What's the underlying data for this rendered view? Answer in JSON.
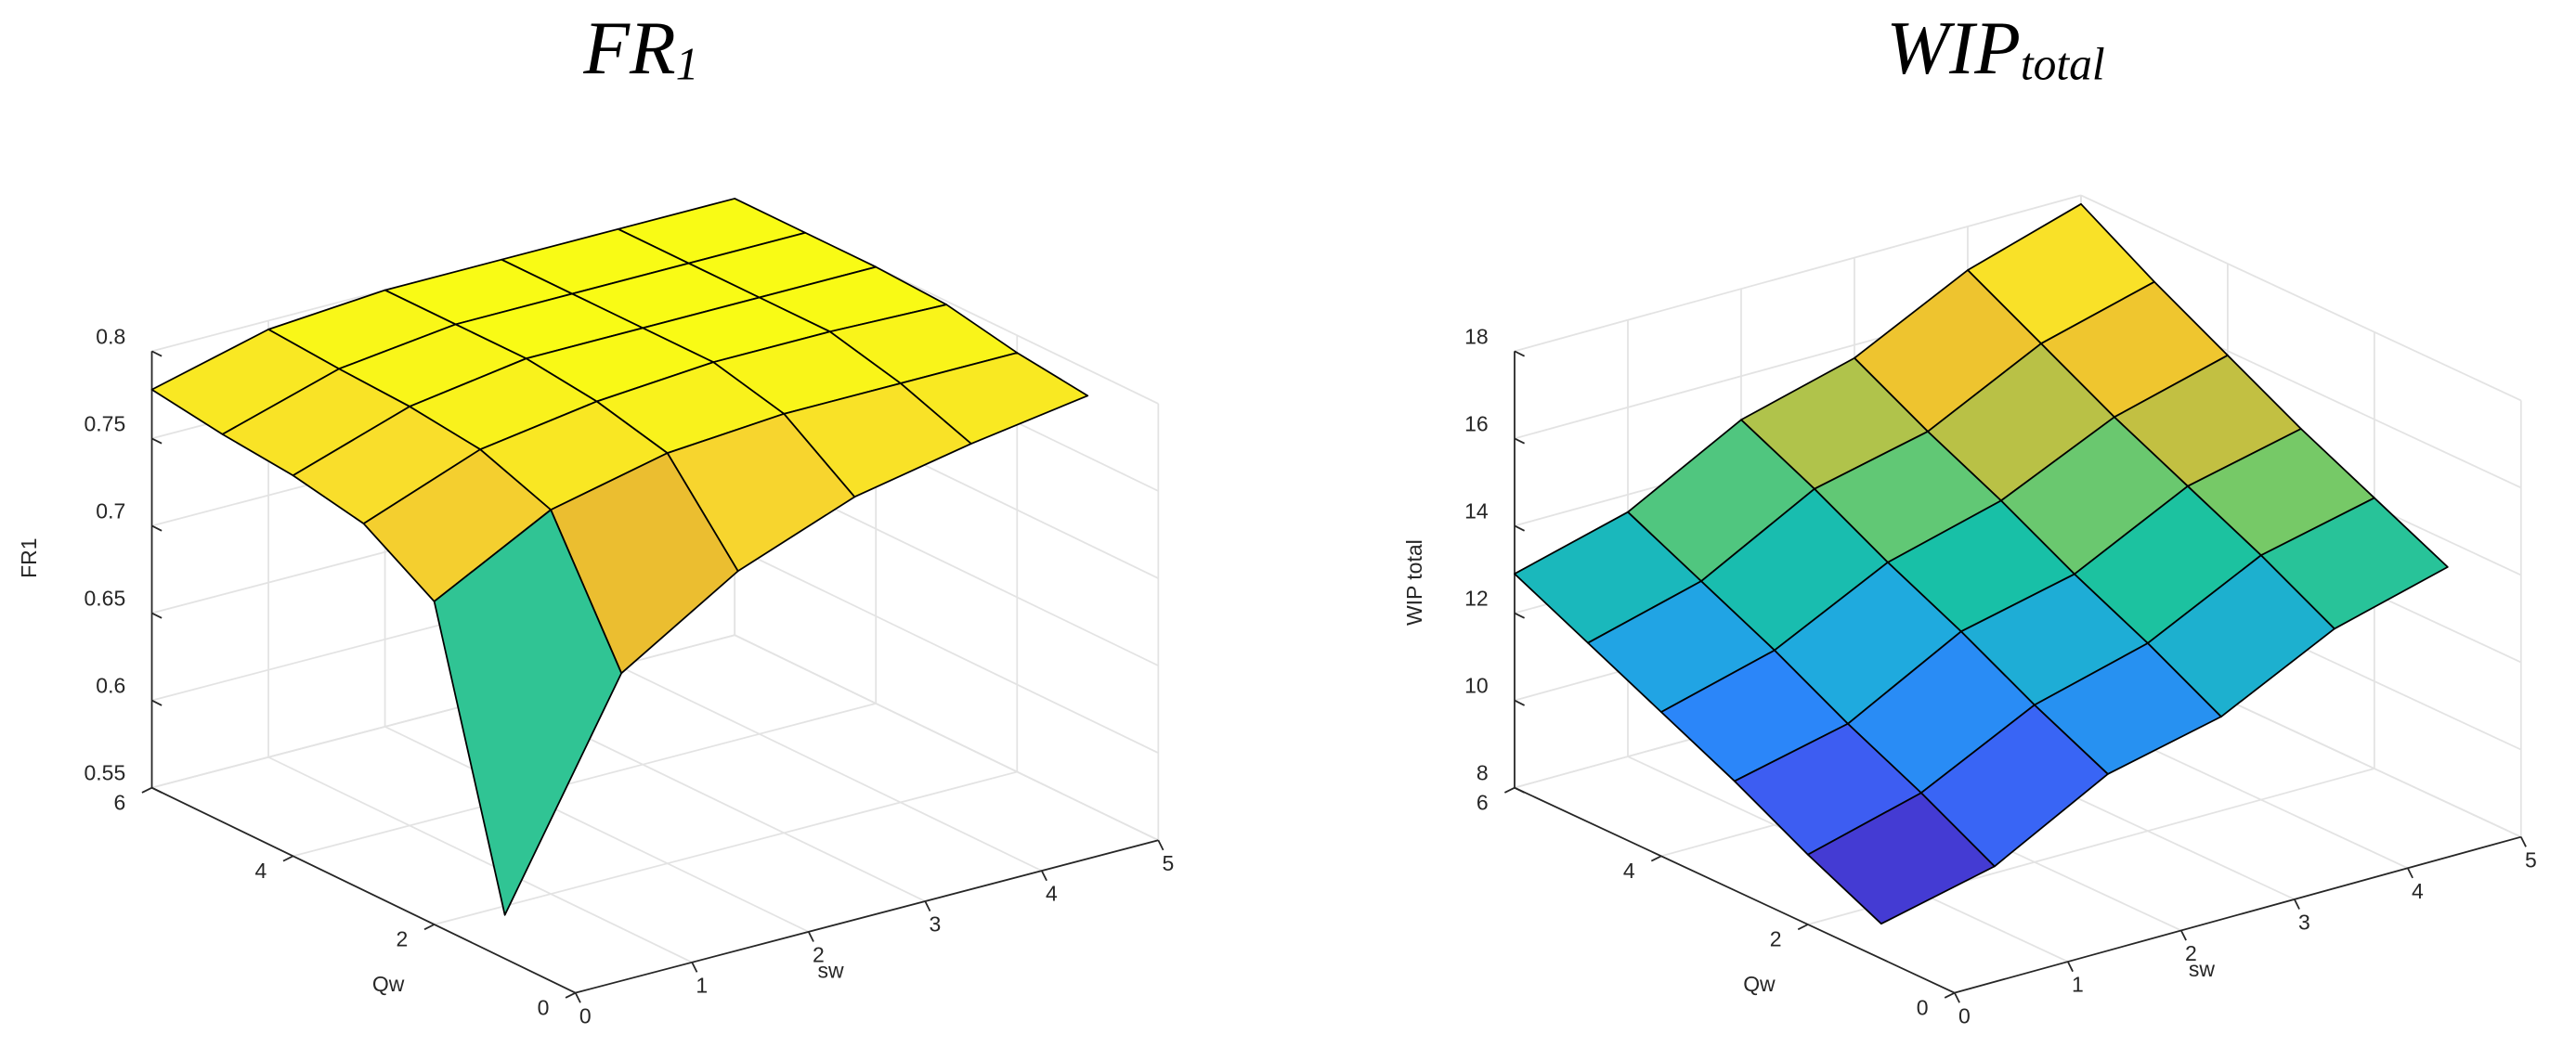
{
  "chart_data": [
    {
      "type": "surface",
      "title": "FR",
      "title_sub": "1",
      "xlabel": "sw",
      "ylabel": "Qw",
      "zlabel": "FR1",
      "x": [
        0,
        1,
        2,
        3,
        4,
        5
      ],
      "y": [
        1,
        2,
        3,
        4,
        5,
        6
      ],
      "z": [
        [
          0.575,
          0.696,
          0.737,
          0.762,
          0.775,
          0.785
        ],
        [
          0.735,
          0.77,
          0.785,
          0.79,
          0.79,
          0.79
        ],
        [
          0.76,
          0.785,
          0.795,
          0.8,
          0.8,
          0.798
        ],
        [
          0.768,
          0.79,
          0.8,
          0.8,
          0.8,
          0.8
        ],
        [
          0.772,
          0.792,
          0.8,
          0.8,
          0.8,
          0.8
        ],
        [
          0.778,
          0.795,
          0.8,
          0.8,
          0.8,
          0.8
        ]
      ],
      "xlim": [
        0,
        5
      ],
      "xticks": [
        0,
        1,
        2,
        3,
        4,
        5
      ],
      "ylim": [
        0,
        6
      ],
      "yticks": [
        0,
        2,
        4,
        6
      ],
      "zlim": [
        0.55,
        0.8
      ],
      "zticks": [
        0.55,
        0.6,
        0.65,
        0.7,
        0.75,
        0.8
      ],
      "grid": true,
      "colormap": [
        "#3e26a8",
        "#4746eb",
        "#2d80fd",
        "#1fa9e1",
        "#17c2a3",
        "#82ca60",
        "#e9ba30",
        "#f9d92e",
        "#f9fb15"
      ]
    },
    {
      "type": "surface",
      "title": "WIP",
      "title_sub": "total",
      "xlabel": "sw",
      "ylabel": "Qw",
      "zlabel": "WIP total",
      "x": [
        0,
        1,
        2,
        3,
        4,
        5
      ],
      "y": [
        1,
        2,
        3,
        4,
        5,
        6
      ],
      "z": [
        [
          8.8,
          9.4,
          10.8,
          11.4,
          12.7,
          13.4
        ],
        [
          9.6,
          10.3,
          11.6,
          12.3,
          13.6,
          14.2
        ],
        [
          10.5,
          11.1,
          12.5,
          13.1,
          14.4,
          15.0
        ],
        [
          11.3,
          12.0,
          13.3,
          14.0,
          15.2,
          15.9
        ],
        [
          12.1,
          12.8,
          14.2,
          14.8,
          16.1,
          16.8
        ],
        [
          12.9,
          13.6,
          15.0,
          15.7,
          17.0,
          17.8
        ]
      ],
      "xlim": [
        0,
        5
      ],
      "xticks": [
        0,
        1,
        2,
        3,
        4,
        5
      ],
      "ylim": [
        0,
        6
      ],
      "yticks": [
        0,
        2,
        4,
        6
      ],
      "zlim": [
        8,
        18
      ],
      "zticks": [
        8,
        10,
        12,
        14,
        16,
        18
      ],
      "grid": true,
      "colormap": [
        "#3e26a8",
        "#4746eb",
        "#2d80fd",
        "#1fa9e1",
        "#17c2a3",
        "#82ca60",
        "#e9ba30",
        "#f9d92e",
        "#f9fb15"
      ]
    }
  ]
}
